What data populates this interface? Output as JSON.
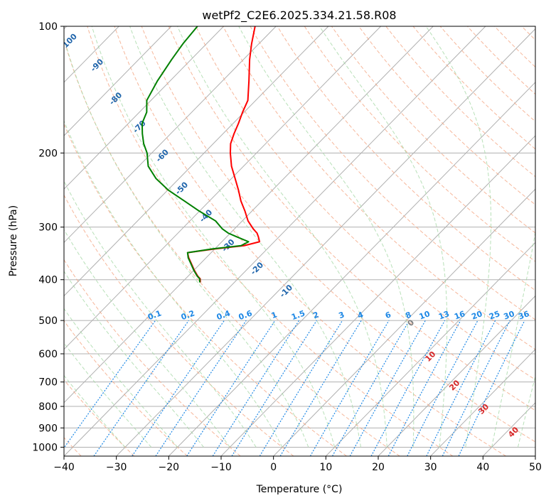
{
  "chart_data": {
    "type": "line",
    "subtype": "skew-t log-p diagram",
    "title": "wetPf2_C2E6.2025.334.21.58.R08",
    "xlabel": "Temperature (°C)",
    "ylabel": "Pressure (hPa)",
    "xlim": [
      -40,
      50
    ],
    "ylim": [
      1050,
      100
    ],
    "y_scale": "log",
    "grid": true,
    "x_ticks": [
      -40,
      -30,
      -20,
      -10,
      0,
      10,
      20,
      30,
      40,
      50
    ],
    "y_ticks": [
      100,
      200,
      300,
      400,
      500,
      600,
      700,
      800,
      900,
      1000
    ],
    "dry_adiabat_labels": [
      "-100",
      "-90",
      "-80",
      "-70",
      "-60",
      "-50",
      "-40",
      "-30",
      "-20",
      "-10"
    ],
    "moist_adiabat_labels": [
      "0",
      "10",
      "20",
      "30",
      "40"
    ],
    "mixing_ratio_labels": [
      "0.1",
      "0.2",
      "0.4",
      "0.6",
      "1",
      "1.5",
      "2",
      "3",
      "4",
      "6",
      "8",
      "10",
      "13",
      "16",
      "20",
      "25",
      "30",
      "36"
    ],
    "colors": {
      "temperature": "#ff0000",
      "dewpoint": "#008000",
      "isotherm": "#b0b0b0",
      "dry_adiabat": "#f4a582",
      "moist_adiabat": "#a6d8a6",
      "mixing_ratio": "#1e88e5",
      "dry_adiabat_label": "#2166ac",
      "moist_adiabat_label": "#d62728"
    },
    "series": [
      {
        "key": "temperature",
        "points": [
          {
            "p": 100,
            "t": -84.0
          },
          {
            "p": 110,
            "t": -81.4
          },
          {
            "p": 120,
            "t": -78.8
          },
          {
            "p": 135,
            "t": -74.9
          },
          {
            "p": 150,
            "t": -71.5
          },
          {
            "p": 160,
            "t": -70.3
          },
          {
            "p": 170,
            "t": -69.0
          },
          {
            "p": 180,
            "t": -67.9
          },
          {
            "p": 190,
            "t": -66.7
          },
          {
            "p": 200,
            "t": -65.0
          },
          {
            "p": 215,
            "t": -62.3
          },
          {
            "p": 230,
            "t": -59.3
          },
          {
            "p": 245,
            "t": -56.5
          },
          {
            "p": 260,
            "t": -54.0
          },
          {
            "p": 275,
            "t": -51.3
          },
          {
            "p": 290,
            "t": -48.9
          },
          {
            "p": 303,
            "t": -46.4
          },
          {
            "p": 310,
            "t": -44.9
          },
          {
            "p": 316,
            "t": -44.0
          },
          {
            "p": 325,
            "t": -42.8
          },
          {
            "p": 332,
            "t": -45.0
          },
          {
            "p": 338,
            "t": -50.0
          },
          {
            "p": 345,
            "t": -54.5
          },
          {
            "p": 355,
            "t": -53.3
          },
          {
            "p": 365,
            "t": -51.9
          },
          {
            "p": 380,
            "t": -49.9
          },
          {
            "p": 392,
            "t": -48.2
          },
          {
            "p": 398,
            "t": -47.2
          },
          {
            "p": 406,
            "t": -46.5
          }
        ]
      },
      {
        "key": "dewpoint",
        "points": [
          {
            "p": 100,
            "t": -95.0
          },
          {
            "p": 110,
            "t": -94.5
          },
          {
            "p": 120,
            "t": -93.7
          },
          {
            "p": 135,
            "t": -92.4
          },
          {
            "p": 150,
            "t": -90.8
          },
          {
            "p": 160,
            "t": -88.6
          },
          {
            "p": 170,
            "t": -87.4
          },
          {
            "p": 180,
            "t": -85.4
          },
          {
            "p": 190,
            "t": -83.3
          },
          {
            "p": 200,
            "t": -80.9
          },
          {
            "p": 215,
            "t": -78.2
          },
          {
            "p": 230,
            "t": -74.4
          },
          {
            "p": 245,
            "t": -69.9
          },
          {
            "p": 260,
            "t": -64.8
          },
          {
            "p": 275,
            "t": -60.0
          },
          {
            "p": 290,
            "t": -55.1
          },
          {
            "p": 303,
            "t": -52.3
          },
          {
            "p": 310,
            "t": -50.4
          },
          {
            "p": 316,
            "t": -48.2
          },
          {
            "p": 325,
            "t": -44.9
          },
          {
            "p": 332,
            "t": -45.6
          },
          {
            "p": 338,
            "t": -50.5
          },
          {
            "p": 345,
            "t": -54.5
          },
          {
            "p": 355,
            "t": -53.4
          },
          {
            "p": 365,
            "t": -52.0
          },
          {
            "p": 380,
            "t": -50.0
          },
          {
            "p": 392,
            "t": -48.3
          },
          {
            "p": 398,
            "t": -47.3
          },
          {
            "p": 406,
            "t": -46.6
          }
        ]
      }
    ]
  }
}
